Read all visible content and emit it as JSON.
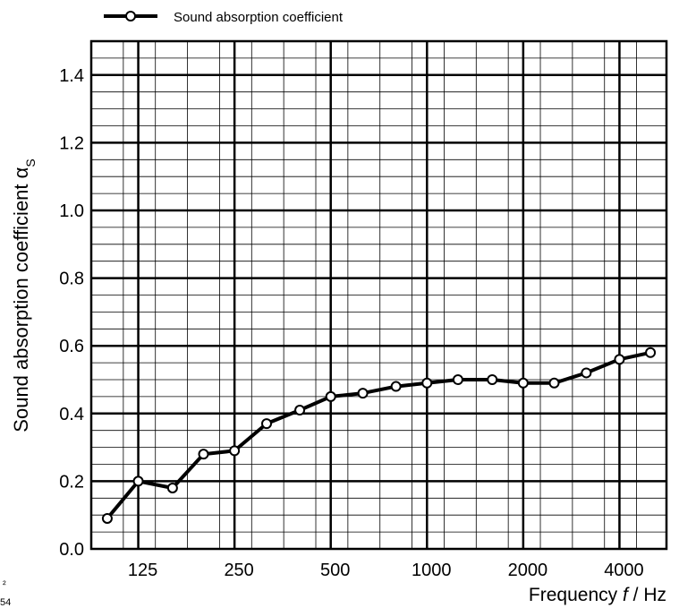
{
  "chart_data": {
    "type": "line",
    "title": "",
    "legend": {
      "label": "Sound absorption coefficient",
      "position": "top-left"
    },
    "xlabel": {
      "prefix": "Frequency ",
      "italic": "f",
      "suffix": " / Hz"
    },
    "ylabel": {
      "main": "Sound absorption coefficient α",
      "subscript": "S"
    },
    "x_scale": "log",
    "x_unit": "Hz",
    "x_ticks": [
      "125",
      "250",
      "500",
      "1000",
      "2000",
      "4000"
    ],
    "y_ticks": [
      "0.0",
      "0.2",
      "0.4",
      "0.6",
      "0.8",
      "1.0",
      "1.2",
      "1.4"
    ],
    "ylim": [
      0,
      1.5
    ],
    "grid": true,
    "series": [
      {
        "name": "Sound absorption coefficient",
        "color": "#000000",
        "x": [
          100,
          125,
          160,
          200,
          250,
          315,
          400,
          500,
          630,
          800,
          1000,
          1250,
          1600,
          2000,
          2500,
          3150,
          4000,
          5000
        ],
        "y": [
          0.09,
          0.2,
          0.18,
          0.28,
          0.29,
          0.37,
          0.41,
          0.45,
          0.46,
          0.48,
          0.49,
          0.5,
          0.5,
          0.49,
          0.49,
          0.52,
          0.56,
          0.58
        ]
      }
    ]
  },
  "stray_marks": [
    "²",
    "54"
  ]
}
